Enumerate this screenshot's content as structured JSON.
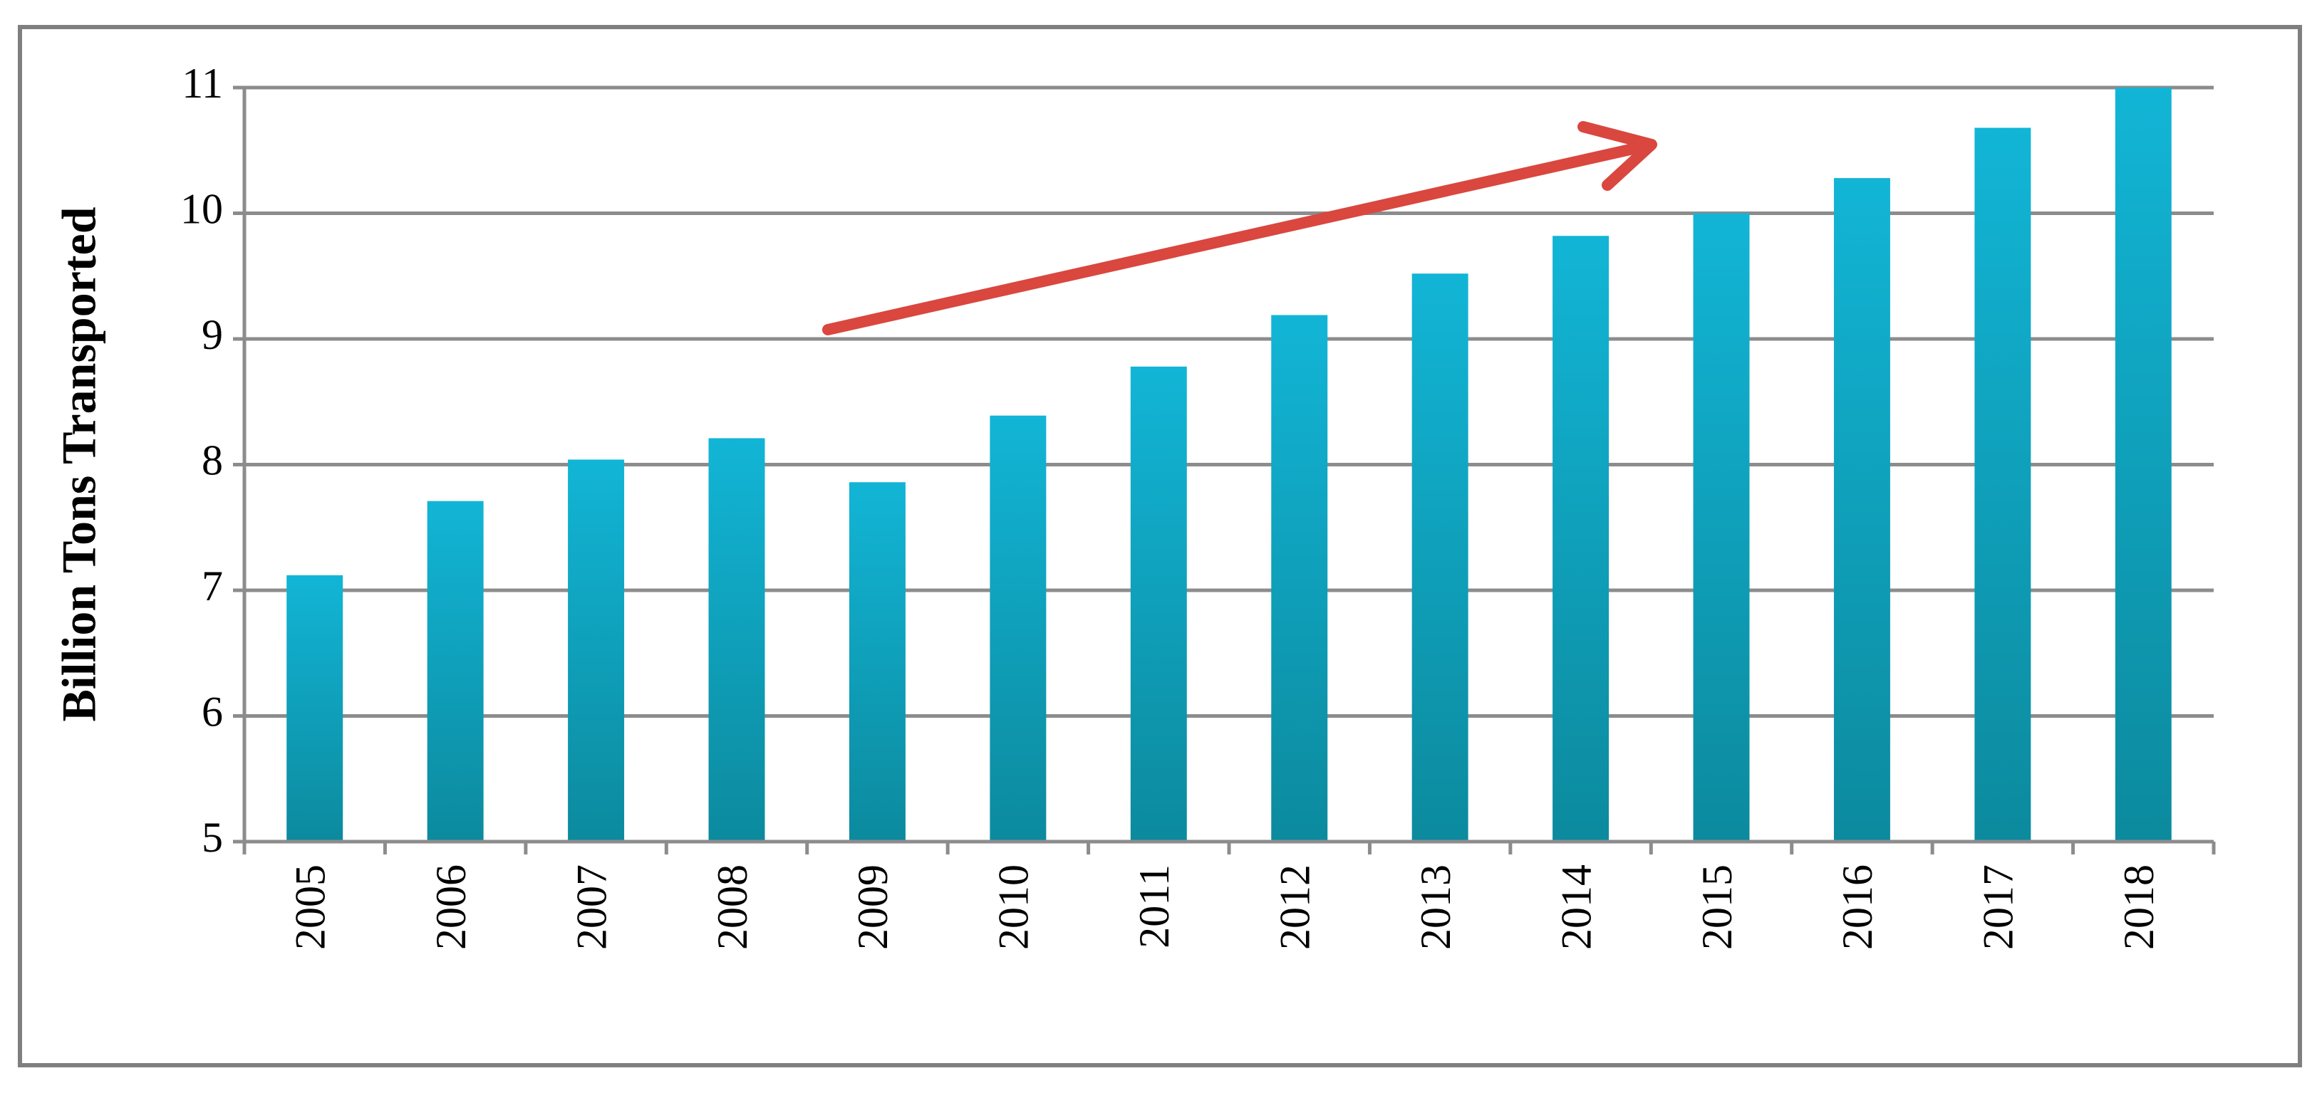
{
  "chart_data": {
    "type": "bar",
    "y_label": "Billion Tons Transported",
    "categories": [
      "2005",
      "2006",
      "2007",
      "2008",
      "2009",
      "2010",
      "2011",
      "2012",
      "2013",
      "2014",
      "2015",
      "2016",
      "2017",
      "2018"
    ],
    "values": [
      7.12,
      7.71,
      8.04,
      8.21,
      7.86,
      8.39,
      8.78,
      9.19,
      9.52,
      9.82,
      10.0,
      10.28,
      10.68,
      11.0
    ],
    "color": "#12b5d6",
    "ylim": [
      5,
      11
    ],
    "yticks": [
      5,
      6,
      7,
      8,
      9,
      10,
      11
    ],
    "grid": true
  }
}
